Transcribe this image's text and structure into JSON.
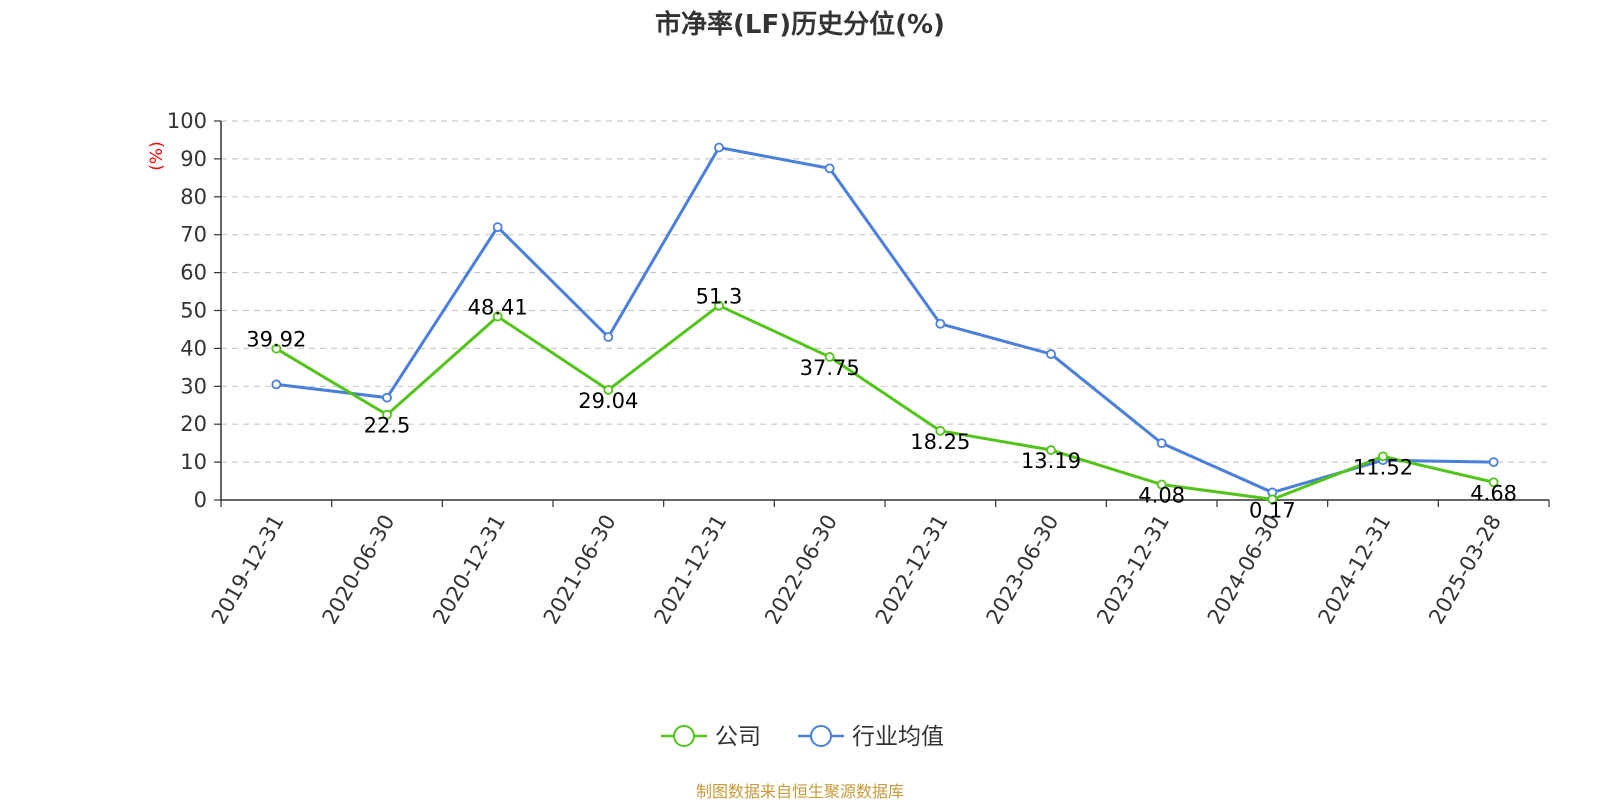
{
  "chart_data": {
    "type": "line",
    "title": "市净率(LF)历史分位(%)",
    "ylabel": "(%)",
    "xlabel": "",
    "ylim": [
      0,
      100
    ],
    "yticks": [
      0,
      10,
      20,
      30,
      40,
      50,
      60,
      70,
      80,
      90,
      100
    ],
    "grid": true,
    "legend_position": "bottom",
    "categories": [
      "2019-12-31",
      "2020-06-30",
      "2020-12-31",
      "2021-06-30",
      "2021-12-31",
      "2022-06-30",
      "2022-12-31",
      "2023-06-30",
      "2023-12-31",
      "2024-06-30",
      "2024-12-31",
      "2025-03-28"
    ],
    "series": [
      {
        "name": "公司",
        "color": "#52c41a",
        "values": [
          39.92,
          22.5,
          48.41,
          29.04,
          51.3,
          37.75,
          18.25,
          13.19,
          4.08,
          0.17,
          11.52,
          4.68
        ],
        "labels": [
          "39.92",
          "22.5",
          "48.41",
          "29.04",
          "51.3",
          "37.75",
          "18.25",
          "13.19",
          "4.08",
          "0.17",
          "11.52",
          "4.68"
        ]
      },
      {
        "name": "行业均值",
        "color": "#4a7fdb",
        "values": [
          30.5,
          27.0,
          72.0,
          43.0,
          93.0,
          87.5,
          46.5,
          38.5,
          15.0,
          2.0,
          10.5,
          10.0
        ]
      }
    ]
  },
  "source": "制图数据来自恒生聚源数据库"
}
